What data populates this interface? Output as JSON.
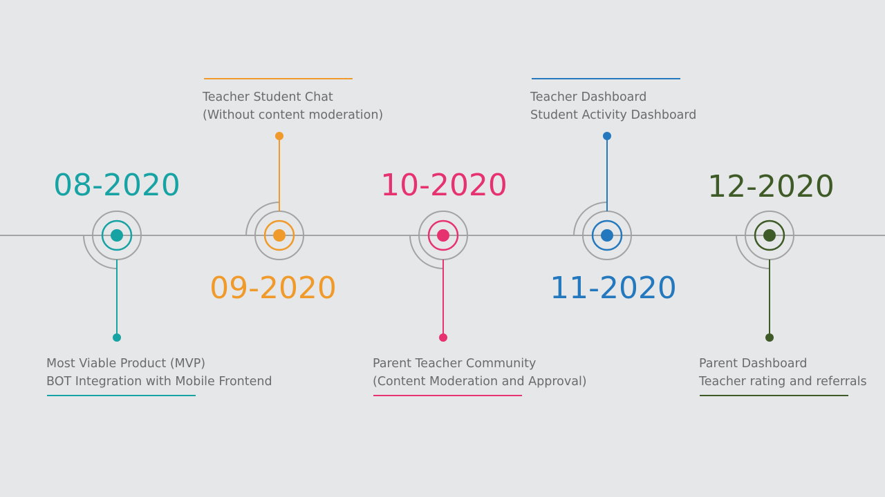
{
  "timeline": {
    "milestones": [
      {
        "date": "08-2020",
        "color": "#17a2a4",
        "position": "top",
        "description": [
          "Most Viable Product (MVP)",
          "BOT Integration with Mobile Frontend"
        ]
      },
      {
        "date": "09-2020",
        "color": "#ef9a2a",
        "position": "bottom",
        "description": [
          "Teacher Student Chat",
          "(Without content moderation)"
        ]
      },
      {
        "date": "10-2020",
        "color": "#e6336f",
        "position": "top",
        "description": [
          "Parent Teacher Community",
          "(Content Moderation and Approval)"
        ]
      },
      {
        "date": "11-2020",
        "color": "#2478bd",
        "position": "bottom",
        "description": [
          "Teacher Dashboard",
          "Student Activity Dashboard"
        ]
      },
      {
        "date": "12-2020",
        "color": "#3e5a26",
        "position": "top",
        "description": [
          "Parent Dashboard",
          "Teacher rating and referrals"
        ]
      }
    ],
    "axis_color": "#a3a3a3",
    "text_color": "#6b6b6b",
    "background": "#e6e7e8"
  }
}
